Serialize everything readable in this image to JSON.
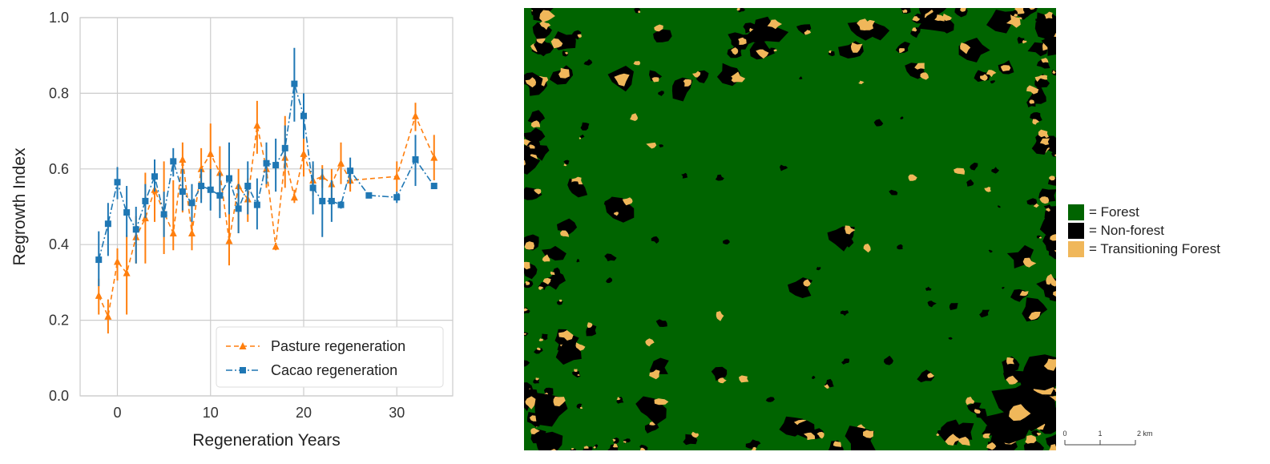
{
  "chart_data": {
    "type": "line",
    "title": "",
    "xlabel": "Regeneration Years",
    "ylabel": "Regrowth Index",
    "xlim": [
      -4,
      36
    ],
    "ylim": [
      0.0,
      1.0
    ],
    "xticks": [
      0,
      10,
      20,
      30
    ],
    "xtick_labels": [
      "0",
      "10",
      "20",
      "30"
    ],
    "yticks": [
      0.0,
      0.2,
      0.4,
      0.6,
      0.8,
      1.0
    ],
    "ytick_labels": [
      "0.0",
      "0.2",
      "0.4",
      "0.6",
      "0.8",
      "1.0"
    ],
    "grid": true,
    "legend_position": "lower-right",
    "series": [
      {
        "name": "Pasture regeneration",
        "color": "#ff7f0e",
        "marker": "triangle",
        "linestyle": "dashed",
        "points": [
          {
            "x": -2,
            "y": 0.265,
            "lo": 0.215,
            "hi": 0.31
          },
          {
            "x": -1,
            "y": 0.21,
            "lo": 0.165,
            "hi": 0.255
          },
          {
            "x": 0,
            "y": 0.355,
            "lo": 0.305,
            "hi": 0.39
          },
          {
            "x": 1,
            "y": 0.325,
            "lo": 0.215,
            "hi": 0.425
          },
          {
            "x": 2,
            "y": 0.42,
            "lo": 0.35,
            "hi": 0.475
          },
          {
            "x": 3,
            "y": 0.47,
            "lo": 0.35,
            "hi": 0.59
          },
          {
            "x": 4,
            "y": 0.545,
            "lo": 0.46,
            "hi": 0.615
          },
          {
            "x": 5,
            "y": 0.485,
            "lo": 0.375,
            "hi": 0.62
          },
          {
            "x": 6,
            "y": 0.43,
            "lo": 0.385,
            "hi": 0.57
          },
          {
            "x": 7,
            "y": 0.625,
            "lo": 0.485,
            "hi": 0.67
          },
          {
            "x": 8,
            "y": 0.43,
            "lo": 0.385,
            "hi": 0.49
          },
          {
            "x": 9,
            "y": 0.6,
            "lo": 0.52,
            "hi": 0.655
          },
          {
            "x": 10,
            "y": 0.64,
            "lo": 0.56,
            "hi": 0.72
          },
          {
            "x": 11,
            "y": 0.59,
            "lo": 0.49,
            "hi": 0.66
          },
          {
            "x": 12,
            "y": 0.41,
            "lo": 0.345,
            "hi": 0.49
          },
          {
            "x": 13,
            "y": 0.555,
            "lo": 0.43,
            "hi": 0.6
          },
          {
            "x": 14,
            "y": 0.52,
            "lo": 0.46,
            "hi": 0.575
          },
          {
            "x": 15,
            "y": 0.715,
            "lo": 0.64,
            "hi": 0.78
          },
          {
            "x": 16,
            "y": 0.6,
            "lo": 0.55,
            "hi": 0.655
          },
          {
            "x": 17,
            "y": 0.395,
            "lo": 0.385,
            "hi": 0.405
          },
          {
            "x": 18,
            "y": 0.63,
            "lo": 0.55,
            "hi": 0.74
          },
          {
            "x": 19,
            "y": 0.525,
            "lo": 0.51,
            "hi": 0.545
          },
          {
            "x": 20,
            "y": 0.64,
            "lo": 0.58,
            "hi": 0.7
          },
          {
            "x": 21,
            "y": 0.57,
            "lo": 0.53,
            "hi": 0.61
          },
          {
            "x": 22,
            "y": 0.58,
            "lo": 0.55,
            "hi": 0.61
          },
          {
            "x": 23,
            "y": 0.56,
            "lo": 0.52,
            "hi": 0.6
          },
          {
            "x": 24,
            "y": 0.615,
            "lo": 0.56,
            "hi": 0.67
          },
          {
            "x": 25,
            "y": 0.57,
            "lo": 0.54,
            "hi": 0.6
          },
          {
            "x": 30,
            "y": 0.58,
            "lo": 0.54,
            "hi": 0.62
          },
          {
            "x": 32,
            "y": 0.74,
            "lo": 0.7,
            "hi": 0.775
          },
          {
            "x": 34,
            "y": 0.63,
            "lo": 0.57,
            "hi": 0.69
          }
        ]
      },
      {
        "name": "Cacao regeneration",
        "color": "#1f77b4",
        "marker": "square",
        "linestyle": "dashdot",
        "points": [
          {
            "x": -2,
            "y": 0.36,
            "lo": 0.29,
            "hi": 0.435
          },
          {
            "x": -1,
            "y": 0.455,
            "lo": 0.37,
            "hi": 0.51
          },
          {
            "x": 0,
            "y": 0.565,
            "lo": 0.52,
            "hi": 0.605
          },
          {
            "x": 1,
            "y": 0.485,
            "lo": 0.42,
            "hi": 0.555
          },
          {
            "x": 2,
            "y": 0.44,
            "lo": 0.35,
            "hi": 0.5
          },
          {
            "x": 3,
            "y": 0.515,
            "lo": 0.47,
            "hi": 0.56
          },
          {
            "x": 4,
            "y": 0.58,
            "lo": 0.54,
            "hi": 0.625
          },
          {
            "x": 5,
            "y": 0.48,
            "lo": 0.42,
            "hi": 0.54
          },
          {
            "x": 6,
            "y": 0.62,
            "lo": 0.58,
            "hi": 0.655
          },
          {
            "x": 7,
            "y": 0.54,
            "lo": 0.49,
            "hi": 0.6
          },
          {
            "x": 8,
            "y": 0.51,
            "lo": 0.46,
            "hi": 0.56
          },
          {
            "x": 9,
            "y": 0.555,
            "lo": 0.51,
            "hi": 0.6
          },
          {
            "x": 10,
            "y": 0.545,
            "lo": 0.49,
            "hi": 0.6
          },
          {
            "x": 11,
            "y": 0.53,
            "lo": 0.47,
            "hi": 0.59
          },
          {
            "x": 12,
            "y": 0.575,
            "lo": 0.48,
            "hi": 0.67
          },
          {
            "x": 13,
            "y": 0.495,
            "lo": 0.43,
            "hi": 0.56
          },
          {
            "x": 14,
            "y": 0.555,
            "lo": 0.48,
            "hi": 0.62
          },
          {
            "x": 15,
            "y": 0.505,
            "lo": 0.44,
            "hi": 0.575
          },
          {
            "x": 16,
            "y": 0.615,
            "lo": 0.56,
            "hi": 0.67
          },
          {
            "x": 17,
            "y": 0.61,
            "lo": 0.54,
            "hi": 0.68
          },
          {
            "x": 18,
            "y": 0.655,
            "lo": 0.6,
            "hi": 0.715
          },
          {
            "x": 19,
            "y": 0.825,
            "lo": 0.725,
            "hi": 0.92
          },
          {
            "x": 20,
            "y": 0.74,
            "lo": 0.68,
            "hi": 0.8
          },
          {
            "x": 21,
            "y": 0.55,
            "lo": 0.48,
            "hi": 0.62
          },
          {
            "x": 22,
            "y": 0.515,
            "lo": 0.42,
            "hi": 0.6
          },
          {
            "x": 23,
            "y": 0.515,
            "lo": 0.46,
            "hi": 0.57
          },
          {
            "x": 24,
            "y": 0.505,
            "lo": 0.495,
            "hi": 0.515
          },
          {
            "x": 25,
            "y": 0.595,
            "lo": 0.56,
            "hi": 0.63
          },
          {
            "x": 27,
            "y": 0.53,
            "lo": 0.53,
            "hi": 0.53
          },
          {
            "x": 30,
            "y": 0.525,
            "lo": 0.51,
            "hi": 0.54
          },
          {
            "x": 32,
            "y": 0.625,
            "lo": 0.555,
            "hi": 0.69
          },
          {
            "x": 34,
            "y": 0.555,
            "lo": 0.555,
            "hi": 0.555
          }
        ]
      }
    ]
  },
  "map": {
    "colors": {
      "forest": "#006400",
      "nonforest": "#000000",
      "transition": "#f0b75a"
    },
    "legend": [
      {
        "label": "= Forest",
        "color": "#006400"
      },
      {
        "label": "= Non-forest",
        "color": "#000000"
      },
      {
        "label": "= Transitioning Forest",
        "color": "#f0b75a"
      }
    ],
    "scalebar": {
      "labels": [
        "0",
        "1",
        "2 km"
      ]
    }
  }
}
